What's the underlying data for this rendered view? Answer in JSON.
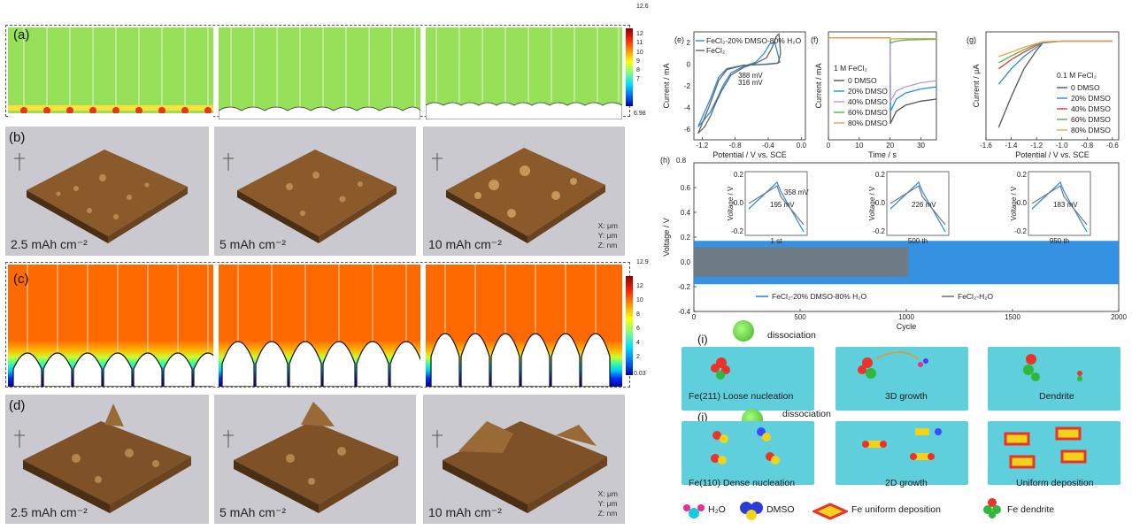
{
  "panels": {
    "a": {
      "label": "(a)",
      "colorbar": {
        "top": "12.6",
        "ticks": [
          "12",
          "11",
          "10",
          "9",
          "8",
          "7"
        ],
        "bottom": "6.98"
      }
    },
    "b": {
      "label": "(b)",
      "captions": [
        "2.5 mAh cm⁻²",
        "5 mAh cm⁻²",
        "10 mAh cm⁻²"
      ],
      "axes_note": [
        "X: μm",
        "Y: μm",
        "Z: nm"
      ]
    },
    "c": {
      "label": "(c)",
      "colorbar": {
        "top": "12.9",
        "ticks": [
          "12",
          "10",
          "8",
          "6",
          "4",
          "2"
        ],
        "bottom": "0.03"
      }
    },
    "d": {
      "label": "(d)",
      "captions": [
        "2.5 mAh cm⁻²",
        "5 mAh cm⁻²",
        "10 mAh cm⁻²"
      ],
      "axes_note": [
        "X: μm",
        "Y: μm",
        "Z: nm"
      ]
    },
    "i": {
      "label": "(i)",
      "dissociation": "dissociation",
      "tiles": [
        "Fe(211) Loose nucleation",
        "3D growth",
        "Dendrite"
      ]
    },
    "j": {
      "label": "(j)",
      "dissociation": "dissociation",
      "tiles": [
        "Fe(110) Dense nucleation",
        "2D growth",
        "Uniform  deposition"
      ]
    },
    "legend": {
      "h2o": "H₂O",
      "dmso": "DMSO",
      "uniform": "Fe uniform deposition",
      "dendrite": "Fe dendrite"
    }
  },
  "chart_data": [
    {
      "type": "line",
      "panel": "(e)",
      "xlabel": "Potential / V vs. SCE",
      "ylabel": "Current / mA",
      "xticks": [
        "-1.2",
        "-0.8",
        "-0.4",
        "0.0"
      ],
      "yticks": [
        "2",
        "0",
        "-2",
        "-4",
        "-6"
      ],
      "xlim": [
        -1.3,
        0.05
      ],
      "ylim": [
        -7,
        3
      ],
      "series": [
        {
          "name": "FeCl₂-20% DMSO-80% H₂O",
          "color": "#2a8be0",
          "x": [
            -1.25,
            -1.18,
            -1.1,
            -1.02,
            -0.95,
            -0.85,
            -0.7,
            -0.55,
            -0.45,
            -0.38,
            -0.32,
            -0.28,
            -0.26,
            -0.3,
            -0.45,
            -0.7,
            -0.9,
            -1.0,
            -1.1,
            -1.25
          ],
          "y": [
            -5.8,
            -5.2,
            -4.4,
            -3.2,
            -2.0,
            -0.8,
            -0.2,
            0.2,
            1.0,
            1.9,
            2.0,
            0.8,
            0.2,
            0.1,
            0.0,
            -0.1,
            -0.4,
            -1.2,
            -3.2,
            -5.8
          ]
        },
        {
          "name": "FeCl₂",
          "color": "#666666",
          "x": [
            -1.25,
            -1.17,
            -1.1,
            -1.03,
            -0.96,
            -0.85,
            -0.7,
            -0.55,
            -0.42,
            -0.35,
            -0.3,
            -0.27,
            -0.25,
            -0.28,
            -0.4,
            -0.7,
            -0.9,
            -1.0,
            -1.12,
            -1.25
          ],
          "y": [
            -6.4,
            -5.8,
            -4.8,
            -3.5,
            -2.4,
            -1.0,
            -0.3,
            0.1,
            0.6,
            1.6,
            2.6,
            2.8,
            1.0,
            0.1,
            0.0,
            -0.1,
            -0.5,
            -1.5,
            -4.0,
            -6.4
          ]
        }
      ],
      "annotations": [
        "388 mV",
        "316 mV"
      ]
    },
    {
      "type": "line",
      "panel": "(f)",
      "xlabel": "Time / s",
      "ylabel": "Current / mA",
      "xticks": [
        "0",
        "10",
        "20",
        "30"
      ],
      "xlim": [
        0,
        35
      ],
      "ylim": [
        -5,
        0.3
      ],
      "legend_title": "1 M FeCl₂",
      "series": [
        {
          "name": "0 DMSO",
          "color": "#555555",
          "x": [
            0,
            20,
            20.1,
            22,
            25,
            30,
            35
          ],
          "y": [
            0,
            0,
            -4.2,
            -3.6,
            -3.3,
            -3.1,
            -3.0
          ]
        },
        {
          "name": "20% DMSO",
          "color": "#2a8be0",
          "x": [
            0,
            20,
            20.1,
            22,
            25,
            30,
            35
          ],
          "y": [
            0,
            0,
            -3.6,
            -3.0,
            -2.7,
            -2.5,
            -2.4
          ]
        },
        {
          "name": "40% DMSO",
          "color": "#b39cd8",
          "x": [
            0,
            20,
            20.1,
            22,
            25,
            30,
            35
          ],
          "y": [
            0,
            0,
            -3.1,
            -2.6,
            -2.4,
            -2.2,
            -2.1
          ]
        },
        {
          "name": "60% DMSO",
          "color": "#4fb848",
          "x": [
            0,
            20,
            20.1,
            22,
            25,
            30,
            35
          ],
          "y": [
            0,
            0,
            -0.25,
            -0.15,
            -0.1,
            -0.08,
            -0.06
          ]
        },
        {
          "name": "80% DMSO",
          "color": "#f0a050",
          "x": [
            0,
            20,
            20.1,
            22,
            25,
            30,
            35
          ],
          "y": [
            0,
            0,
            -0.05,
            -0.04,
            -0.03,
            -0.03,
            -0.03
          ]
        }
      ]
    },
    {
      "type": "line",
      "panel": "(g)",
      "xlabel": "Potential / V vs. SCE",
      "ylabel": "Current / μA",
      "xticks": [
        "-1.6",
        "-1.4",
        "-1.2",
        "-1.0",
        "-0.8",
        "-0.6"
      ],
      "xlim": [
        -1.6,
        -0.55
      ],
      "ylim": [
        -16,
        1.5
      ],
      "legend_title": "0.1 M FeCl₂",
      "series": [
        {
          "name": "0 DMSO",
          "color": "#555555",
          "x": [
            -1.5,
            -1.4,
            -1.3,
            -1.2,
            -1.15,
            -1.0,
            -0.6
          ],
          "y": [
            -14,
            -9,
            -4.5,
            -1.5,
            -0.3,
            0,
            0
          ]
        },
        {
          "name": "20% DMSO",
          "color": "#2a8be0",
          "x": [
            -1.5,
            -1.4,
            -1.3,
            -1.2,
            -1.15,
            -1.0,
            -0.6
          ],
          "y": [
            -7,
            -4.5,
            -2.5,
            -1.0,
            -0.3,
            0,
            0
          ]
        },
        {
          "name": "40% DMSO",
          "color": "#e23a3a",
          "x": [
            -1.5,
            -1.4,
            -1.3,
            -1.2,
            -1.15,
            -1.0,
            -0.6
          ],
          "y": [
            -4.5,
            -3.0,
            -1.8,
            -0.7,
            -0.2,
            0,
            0
          ]
        },
        {
          "name": "60% DMSO",
          "color": "#4fb848",
          "x": [
            -1.5,
            -1.4,
            -1.3,
            -1.2,
            -1.15,
            -1.0,
            -0.6
          ],
          "y": [
            -3.5,
            -2.4,
            -1.4,
            -0.5,
            -0.2,
            0,
            0
          ]
        },
        {
          "name": "80% DMSO",
          "color": "#f0a050",
          "x": [
            -1.5,
            -1.4,
            -1.3,
            -1.2,
            -1.15,
            -1.0,
            -0.6
          ],
          "y": [
            -2.5,
            -1.8,
            -1.0,
            -0.4,
            -0.1,
            0,
            0
          ]
        }
      ]
    },
    {
      "type": "area",
      "panel": "(h)",
      "xlabel": "Cycle",
      "ylabel": "Voltage / V",
      "xticks": [
        "0",
        "500",
        "1000",
        "1500",
        "2000"
      ],
      "yticks": [
        "0.6",
        "0.4",
        "0.2",
        "0.0",
        "-0.2",
        "-0.4"
      ],
      "ytop_label": "0.8",
      "xlim": [
        0,
        2000
      ],
      "ylim": [
        -0.4,
        0.8
      ],
      "series": [
        {
          "name": "FeCl₂-20% DMSO-80% H₂O",
          "color": "#2a8be0",
          "x": [
            0,
            2000
          ],
          "y_upper": [
            0.17,
            0.17
          ],
          "y_lower": [
            -0.18,
            -0.18
          ]
        },
        {
          "name": "FeCl₂-H₂O",
          "color": "#777777",
          "x": [
            0,
            1010
          ],
          "y_upper": [
            0.12,
            0.12
          ],
          "y_lower": [
            -0.12,
            -0.12
          ]
        }
      ],
      "insets": [
        {
          "xlabel": "1 st",
          "ylabel": "Voltage / V",
          "notes": [
            "195 mV",
            "358 mV"
          ],
          "yticks": [
            "0.2",
            "0.0",
            "-0.2"
          ]
        },
        {
          "xlabel": "500 th",
          "ylabel": "Voltage / V",
          "notes": [
            "226 mV"
          ],
          "yticks": [
            "0.2",
            "0.0",
            "-0.2"
          ]
        },
        {
          "xlabel": "950 th",
          "ylabel": "Voltage / V",
          "notes": [
            "183 mV"
          ],
          "yticks": [
            "0.2",
            "0.0",
            "-0.2"
          ]
        }
      ]
    }
  ],
  "chart_labels": {
    "e": "(e)",
    "f": "(f)",
    "g": "(g)",
    "h": "(h)"
  }
}
